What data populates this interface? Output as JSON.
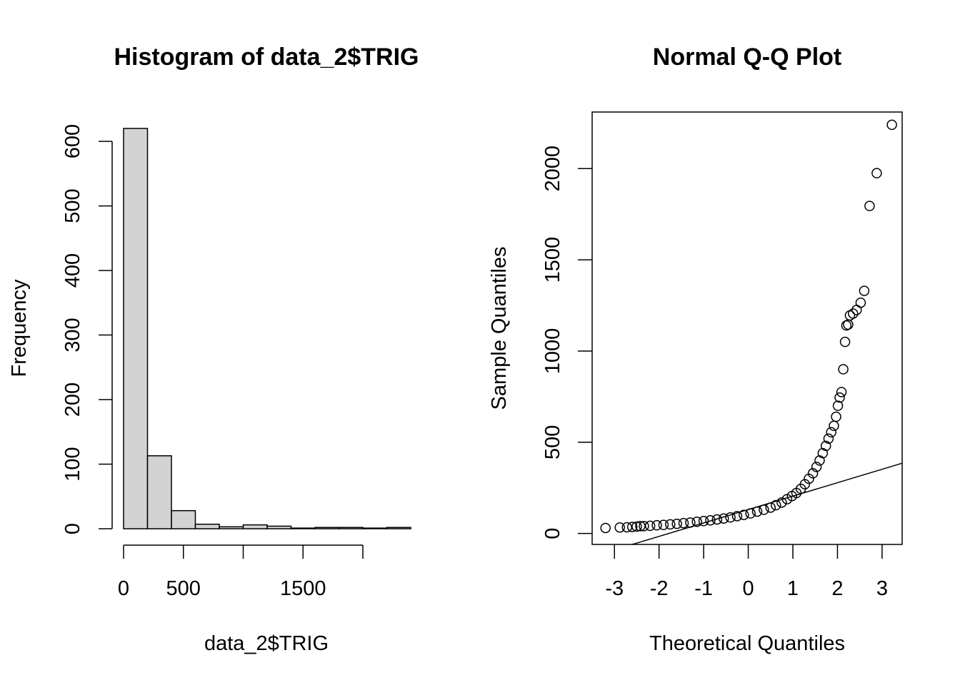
{
  "chart_data": [
    {
      "type": "bar",
      "title": "Histogram of data_2$TRIG",
      "xlabel": "data_2$TRIG",
      "ylabel": "Frequency",
      "bins": [
        {
          "x0": 0,
          "x1": 200,
          "count": 620
        },
        {
          "x0": 200,
          "x1": 400,
          "count": 113
        },
        {
          "x0": 400,
          "x1": 600,
          "count": 28
        },
        {
          "x0": 600,
          "x1": 800,
          "count": 7
        },
        {
          "x0": 800,
          "x1": 1000,
          "count": 3
        },
        {
          "x0": 1000,
          "x1": 1200,
          "count": 6
        },
        {
          "x0": 1200,
          "x1": 1400,
          "count": 4
        },
        {
          "x0": 1400,
          "x1": 1600,
          "count": 1
        },
        {
          "x0": 1600,
          "x1": 1800,
          "count": 2
        },
        {
          "x0": 1800,
          "x1": 2000,
          "count": 2
        },
        {
          "x0": 2000,
          "x1": 2200,
          "count": 1
        },
        {
          "x0": 2200,
          "x1": 2400,
          "count": 2
        }
      ],
      "xticks": [
        0,
        500,
        1000,
        1500,
        2000
      ],
      "xtick_labels": [
        "0",
        "500",
        "",
        "1500",
        ""
      ],
      "yticks": [
        0,
        100,
        200,
        300,
        400,
        500,
        600
      ],
      "ytick_labels": [
        "0",
        "100",
        "200",
        "300",
        "400",
        "500",
        "600"
      ],
      "xlim": [
        0,
        2400
      ],
      "ylim": [
        0,
        620
      ],
      "bar_fill": "#d3d3d3",
      "bar_stroke": "#000000"
    },
    {
      "type": "scatter",
      "title": "Normal Q-Q Plot",
      "xlabel": "Theoretical Quantiles",
      "ylabel": "Sample Quantiles",
      "xticks": [
        -3,
        -2,
        -1,
        0,
        1,
        2,
        3
      ],
      "xtick_labels": [
        "-3",
        "-2",
        "-1",
        "0",
        "1",
        "2",
        "3"
      ],
      "yticks": [
        0,
        500,
        1000,
        1500,
        2000
      ],
      "ytick_labels": [
        "0",
        "500",
        "1000",
        "1500",
        "2000"
      ],
      "xlim": [
        -3.5,
        3.45
      ],
      "ylim": [
        -60,
        2310
      ],
      "reference_line": {
        "x1": -2.6,
        "y1": -60,
        "x2": 3.45,
        "y2": 385
      },
      "points": [
        [
          -3.2,
          30
        ],
        [
          -2.88,
          33
        ],
        [
          -2.72,
          34
        ],
        [
          -2.6,
          36
        ],
        [
          -2.5,
          38
        ],
        [
          -2.42,
          40
        ],
        [
          -2.34,
          40
        ],
        [
          -2.2,
          42
        ],
        [
          -2.05,
          45
        ],
        [
          -1.9,
          47
        ],
        [
          -1.75,
          50
        ],
        [
          -1.6,
          53
        ],
        [
          -1.45,
          57
        ],
        [
          -1.3,
          60
        ],
        [
          -1.15,
          64
        ],
        [
          -1.0,
          68
        ],
        [
          -0.85,
          72
        ],
        [
          -0.7,
          77
        ],
        [
          -0.55,
          82
        ],
        [
          -0.4,
          88
        ],
        [
          -0.25,
          95
        ],
        [
          -0.1,
          102
        ],
        [
          0.05,
          110
        ],
        [
          0.2,
          120
        ],
        [
          0.35,
          130
        ],
        [
          0.5,
          142
        ],
        [
          0.62,
          155
        ],
        [
          0.75,
          170
        ],
        [
          0.87,
          188
        ],
        [
          0.98,
          205
        ],
        [
          1.08,
          222
        ],
        [
          1.18,
          245
        ],
        [
          1.27,
          270
        ],
        [
          1.36,
          300
        ],
        [
          1.45,
          330
        ],
        [
          1.53,
          365
        ],
        [
          1.6,
          400
        ],
        [
          1.67,
          440
        ],
        [
          1.74,
          480
        ],
        [
          1.8,
          520
        ],
        [
          1.86,
          555
        ],
        [
          1.92,
          590
        ],
        [
          1.97,
          640
        ],
        [
          2.01,
          700
        ],
        [
          2.05,
          745
        ],
        [
          2.09,
          775
        ],
        [
          2.13,
          900
        ],
        [
          2.17,
          1050
        ],
        [
          2.2,
          1140
        ],
        [
          2.24,
          1145
        ],
        [
          2.28,
          1195
        ],
        [
          2.35,
          1205
        ],
        [
          2.43,
          1225
        ],
        [
          2.52,
          1265
        ],
        [
          2.6,
          1330
        ],
        [
          2.72,
          1795
        ],
        [
          2.88,
          1975
        ],
        [
          3.22,
          2240
        ]
      ]
    }
  ]
}
